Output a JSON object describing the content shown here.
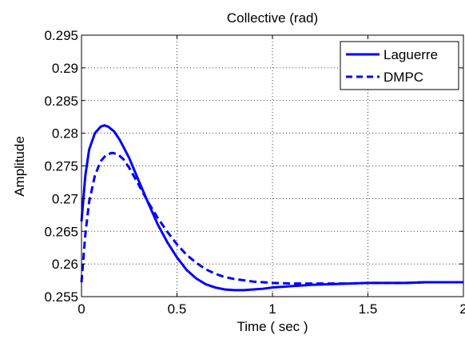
{
  "chart_data": {
    "type": "line",
    "title": "Collective (rad)",
    "xlabel": "Time ( sec )",
    "ylabel": "Amplitude",
    "xlim": [
      0,
      2
    ],
    "ylim": [
      0.255,
      0.295
    ],
    "x_ticks": [
      0,
      0.5,
      1,
      1.5,
      2
    ],
    "x_tick_labels": [
      "0",
      "0.5",
      "1",
      "1.5",
      "2"
    ],
    "y_ticks": [
      0.255,
      0.26,
      0.265,
      0.27,
      0.275,
      0.28,
      0.285,
      0.29,
      0.295
    ],
    "y_tick_labels": [
      "0.255",
      "0.26",
      "0.265",
      "0.27",
      "0.275",
      "0.28",
      "0.285",
      "0.29",
      "0.295"
    ],
    "grid": true,
    "legend_position": "top-right",
    "series": [
      {
        "name": "Laguerre",
        "color": "#0000ff",
        "style": "solid",
        "x": [
          0,
          0.02,
          0.04,
          0.07,
          0.1,
          0.12,
          0.14,
          0.17,
          0.2,
          0.25,
          0.3,
          0.35,
          0.4,
          0.45,
          0.5,
          0.55,
          0.6,
          0.65,
          0.7,
          0.75,
          0.8,
          0.85,
          0.9,
          0.95,
          1.0,
          1.05,
          1.1,
          1.2,
          1.3,
          1.4,
          1.5,
          1.6,
          1.7,
          1.8,
          1.9,
          2.0
        ],
        "y": [
          0.2665,
          0.2735,
          0.2775,
          0.28,
          0.281,
          0.2812,
          0.281,
          0.2803,
          0.279,
          0.2762,
          0.2727,
          0.2693,
          0.266,
          0.2633,
          0.261,
          0.2591,
          0.2578,
          0.2569,
          0.2564,
          0.2561,
          0.256,
          0.256,
          0.2561,
          0.2562,
          0.2564,
          0.2565,
          0.2566,
          0.2568,
          0.2569,
          0.257,
          0.2571,
          0.2571,
          0.2571,
          0.2572,
          0.2572,
          0.2572
        ]
      },
      {
        "name": "DMPC",
        "color": "#0000ff",
        "style": "dashed",
        "x": [
          0,
          0.02,
          0.04,
          0.07,
          0.1,
          0.13,
          0.16,
          0.19,
          0.22,
          0.25,
          0.3,
          0.35,
          0.4,
          0.45,
          0.5,
          0.55,
          0.6,
          0.65,
          0.7,
          0.75,
          0.8,
          0.85,
          0.9,
          0.95,
          1.0,
          1.1,
          1.2,
          1.3,
          1.4,
          1.5,
          1.6,
          1.7,
          1.8,
          1.9,
          2.0
        ],
        "y": [
          0.2572,
          0.2645,
          0.2695,
          0.2735,
          0.2757,
          0.2767,
          0.277,
          0.2768,
          0.276,
          0.2747,
          0.2721,
          0.2694,
          0.267,
          0.2649,
          0.263,
          0.2614,
          0.2602,
          0.2592,
          0.2585,
          0.258,
          0.2577,
          0.2575,
          0.2573,
          0.2572,
          0.2571,
          0.257,
          0.257,
          0.257,
          0.257,
          0.2571,
          0.2571,
          0.2571,
          0.2572,
          0.2572,
          0.2572
        ]
      }
    ]
  }
}
